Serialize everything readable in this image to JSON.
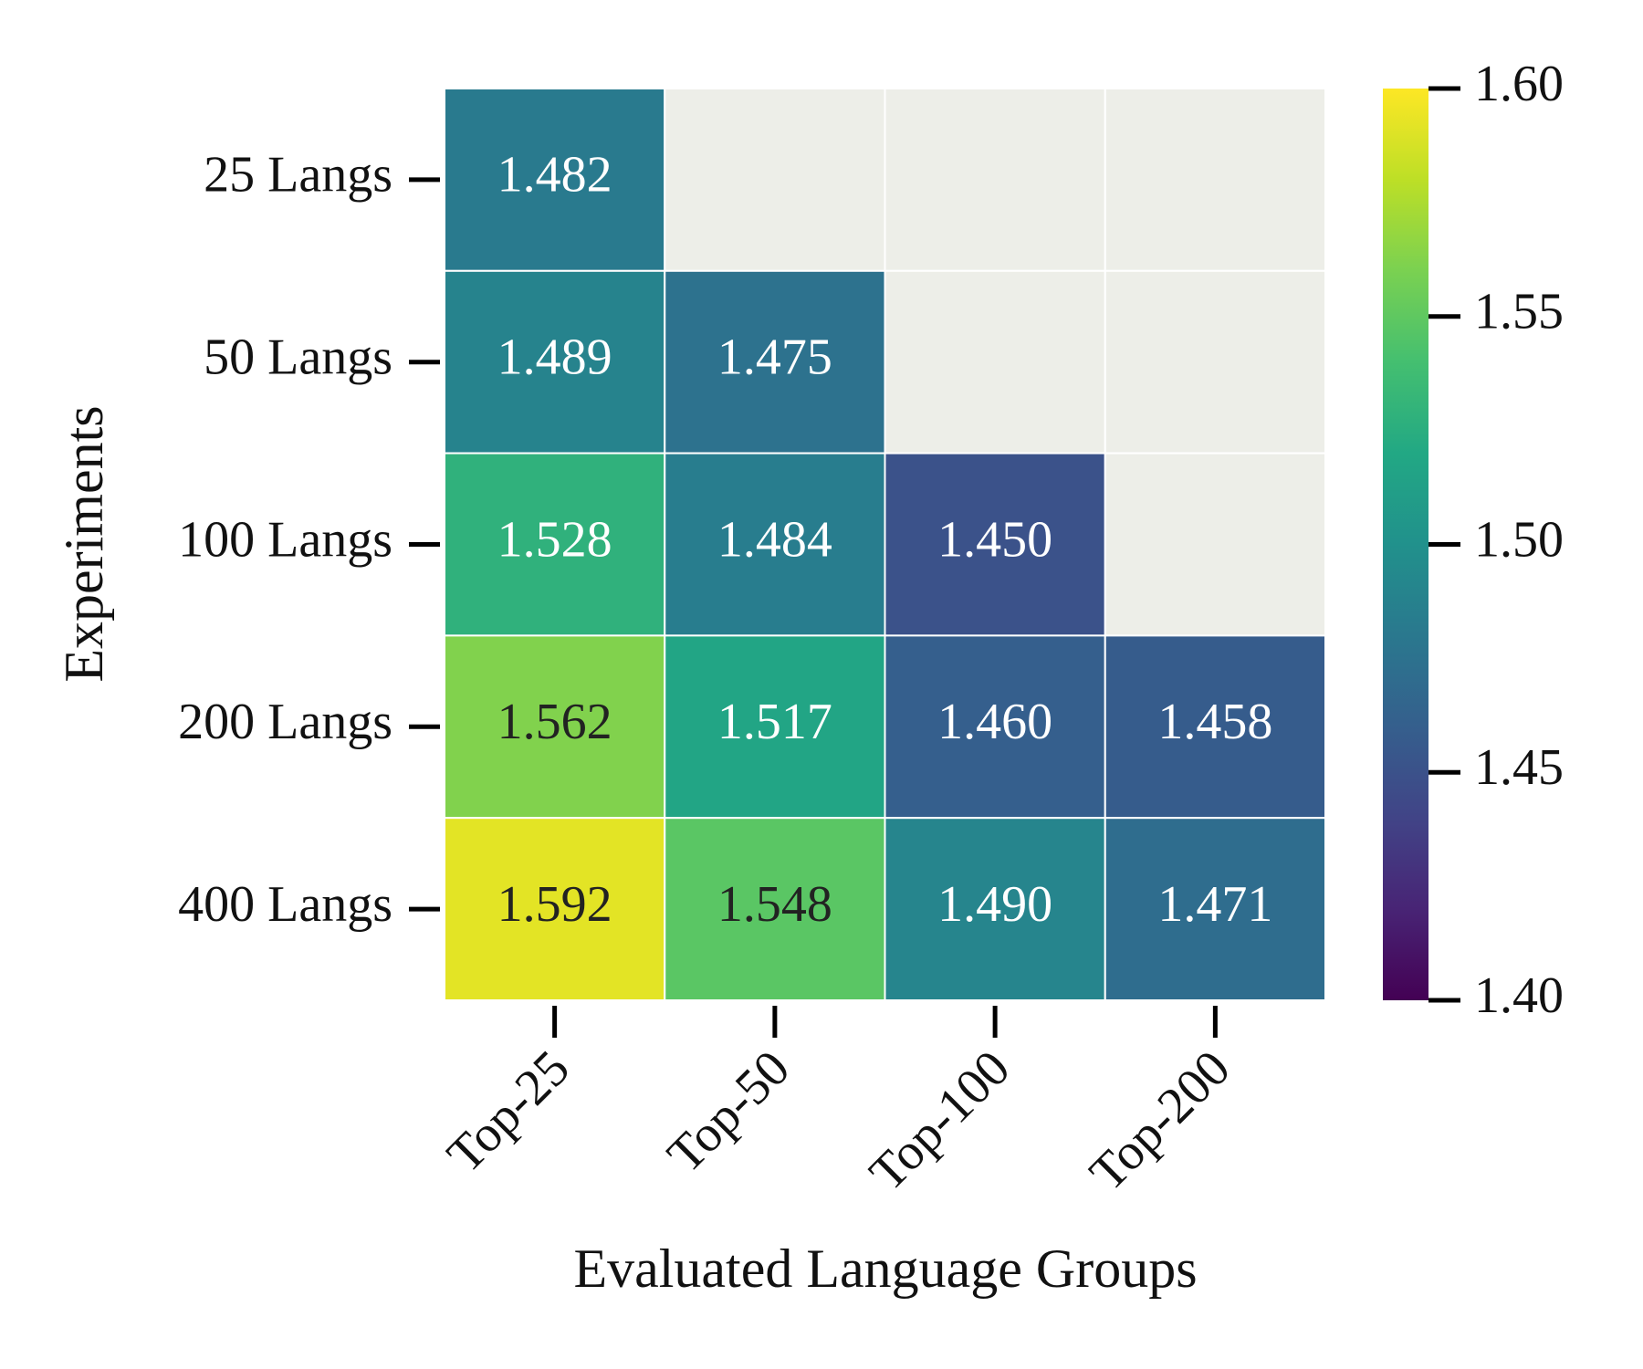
{
  "chart_data": {
    "type": "heatmap",
    "xlabel": "Evaluated Language Groups",
    "ylabel": "Experiments",
    "x_categories": [
      "Top-25",
      "Top-50",
      "Top-100",
      "Top-200"
    ],
    "y_categories": [
      "25 Langs",
      "50 Langs",
      "100 Langs",
      "200 Langs",
      "400 Langs"
    ],
    "values": [
      [
        1.482,
        null,
        null,
        null
      ],
      [
        1.489,
        1.475,
        null,
        null
      ],
      [
        1.528,
        1.484,
        1.45,
        null
      ],
      [
        1.562,
        1.517,
        1.46,
        1.458
      ],
      [
        1.592,
        1.548,
        1.49,
        1.471
      ]
    ],
    "value_labels": [
      [
        "1.482",
        null,
        null,
        null
      ],
      [
        "1.489",
        "1.475",
        null,
        null
      ],
      [
        "1.528",
        "1.484",
        "1.450",
        null
      ],
      [
        "1.562",
        "1.517",
        "1.460",
        "1.458"
      ],
      [
        "1.592",
        "1.548",
        "1.490",
        "1.471"
      ]
    ],
    "colormap": "viridis",
    "missing_color": "#edeee8",
    "clim": [
      1.4,
      1.6
    ],
    "cticks": [
      {
        "value": 1.4,
        "label": "1.40"
      },
      1.45,
      {
        "value": 1.5,
        "label": "1.50"
      },
      1.55,
      {
        "value": 1.6,
        "label": "1.60"
      }
    ]
  }
}
